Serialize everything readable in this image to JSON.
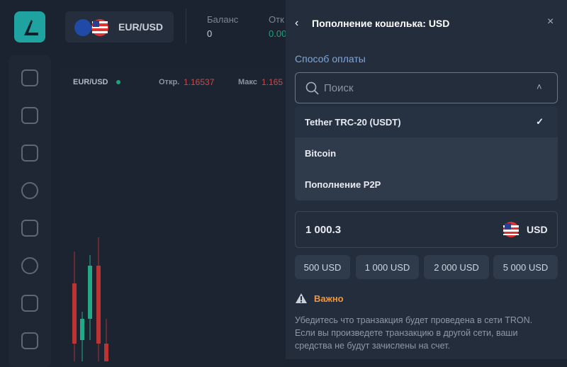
{
  "header": {
    "pair": "EUR/USD",
    "balance_label": "Баланс",
    "balance_value": "0",
    "open_label": "Отк",
    "open_value": "0.00"
  },
  "chart": {
    "symbol": "EUR/USD",
    "open_label": "Откр.",
    "open_value": "1.16537",
    "high_label": "Макс",
    "high_value": "1.165"
  },
  "panel": {
    "title": "Пополнение кошелька: USD",
    "method_label": "Способ оплаты",
    "search_placeholder": "Поиск",
    "options": [
      "Tether TRC-20 (USDT)",
      "Bitcoin",
      "Пополнение P2P"
    ],
    "amount": "1 000.3",
    "currency": "USD",
    "quick_amounts": [
      "500 USD",
      "1 000 USD",
      "2 000 USD",
      "5 000 USD"
    ],
    "warning_title": "Важно",
    "warning_lines": [
      "Убедитесь что транзакция будет проведена в сети TRON.",
      "Если вы произведете транзакцию в другой сети, ваши",
      "средства не будут зачислены на счет."
    ]
  }
}
